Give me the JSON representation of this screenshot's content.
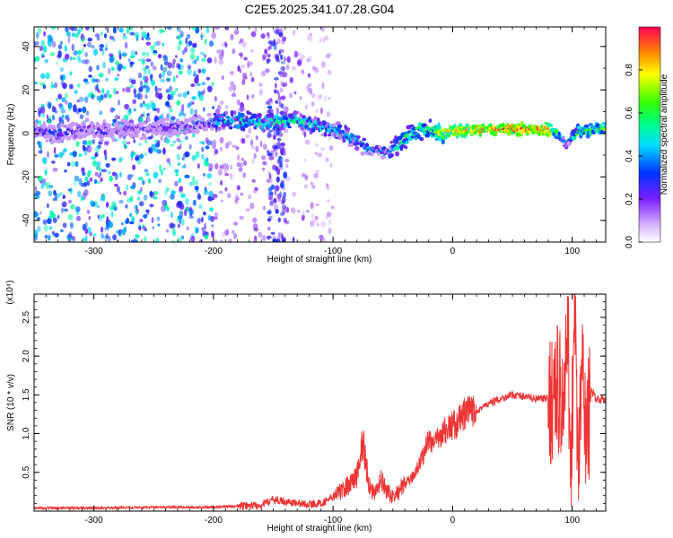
{
  "title": "C2E5.2025.341.07.28.G04",
  "colors": {
    "line": "#ee3333",
    "spectrogram_base": "#7a1fff",
    "colorbar": [
      "#ff0000",
      "#ffff00",
      "#00ff00",
      "#00ffff",
      "#0000ff",
      "#ff00ff"
    ]
  },
  "chart_data": [
    {
      "type": "heatmap",
      "title": "",
      "xlabel": "Height of straight line (km)",
      "ylabel": "Frequency (Hz)",
      "xlim": [
        -350,
        128
      ],
      "ylim": [
        -50,
        49
      ],
      "xticks": [
        "-300",
        "-200",
        "-100",
        "0",
        "100"
      ],
      "yticks": [
        "-40",
        "-20",
        "0",
        "20",
        "40"
      ],
      "colorbar": {
        "label": "Normalized spectral amplitude",
        "range": [
          0,
          1
        ],
        "ticks": [
          "0.0",
          "0.2",
          "0.4",
          "0.6",
          "0.8"
        ]
      },
      "ridge": {
        "x": [
          -345,
          -330,
          -310,
          -290,
          -260,
          -230,
          -205,
          -200,
          -180,
          -160,
          -140,
          -120,
          -100,
          -85,
          -70,
          -55,
          -48,
          -40,
          -30,
          -20,
          -12,
          0,
          30,
          60,
          80,
          88,
          95,
          105,
          128
        ],
        "frequency": [
          1,
          0,
          2,
          1,
          2,
          3,
          4,
          6,
          6,
          5,
          6,
          5,
          2,
          -2,
          -7,
          -9,
          -6,
          -3,
          1,
          3,
          0,
          1,
          2,
          2,
          2,
          0,
          -5,
          1,
          2
        ],
        "amplitude": [
          0.25,
          0.3,
          0.22,
          0.2,
          0.2,
          0.22,
          0.25,
          0.45,
          0.5,
          0.5,
          0.55,
          0.5,
          0.45,
          0.45,
          0.45,
          0.4,
          0.5,
          0.55,
          0.6,
          0.6,
          0.7,
          0.8,
          0.9,
          0.95,
          0.9,
          0.6,
          0.4,
          0.6,
          0.7
        ]
      }
    },
    {
      "type": "line",
      "title": "",
      "xlabel": "Height of straight line (km)",
      "ylabel": "SNR (10 * v/v)",
      "y_multiplier": "(x10⁴)",
      "xlim": [
        -350,
        128
      ],
      "ylim": [
        0,
        2.8
      ],
      "xticks": [
        "-300",
        "-200",
        "-100",
        "0",
        "100"
      ],
      "yticks": [
        "0.5",
        "1.0",
        "1.5",
        "2.0",
        "2.5"
      ],
      "series": [
        {
          "x": [
            -350,
            -300,
            -250,
            -200,
            -170,
            -160,
            -150,
            -140,
            -130,
            -120,
            -110,
            -100,
            -90,
            -80,
            -75,
            -70,
            -65,
            -60,
            -55,
            -50,
            -45,
            -40,
            -35,
            -30,
            -25,
            -20,
            -15,
            -10,
            -5,
            0,
            5,
            10,
            20,
            30,
            40,
            50,
            60,
            70,
            80,
            85,
            90,
            93,
            96,
            99,
            102,
            105,
            108,
            112,
            116,
            120,
            128
          ],
          "y": [
            0.04,
            0.04,
            0.05,
            0.05,
            0.07,
            0.08,
            0.15,
            0.12,
            0.1,
            0.09,
            0.1,
            0.18,
            0.3,
            0.45,
            0.9,
            0.35,
            0.2,
            0.4,
            0.25,
            0.18,
            0.25,
            0.35,
            0.4,
            0.55,
            0.7,
            0.95,
            0.85,
            1.0,
            1.05,
            1.1,
            1.15,
            1.25,
            1.3,
            1.38,
            1.45,
            1.5,
            1.48,
            1.45,
            1.45,
            1.5,
            1.6,
            1.2,
            2.3,
            0.7,
            2.6,
            0.3,
            1.9,
            0.9,
            1.55,
            1.45,
            1.44
          ]
        }
      ]
    }
  ]
}
